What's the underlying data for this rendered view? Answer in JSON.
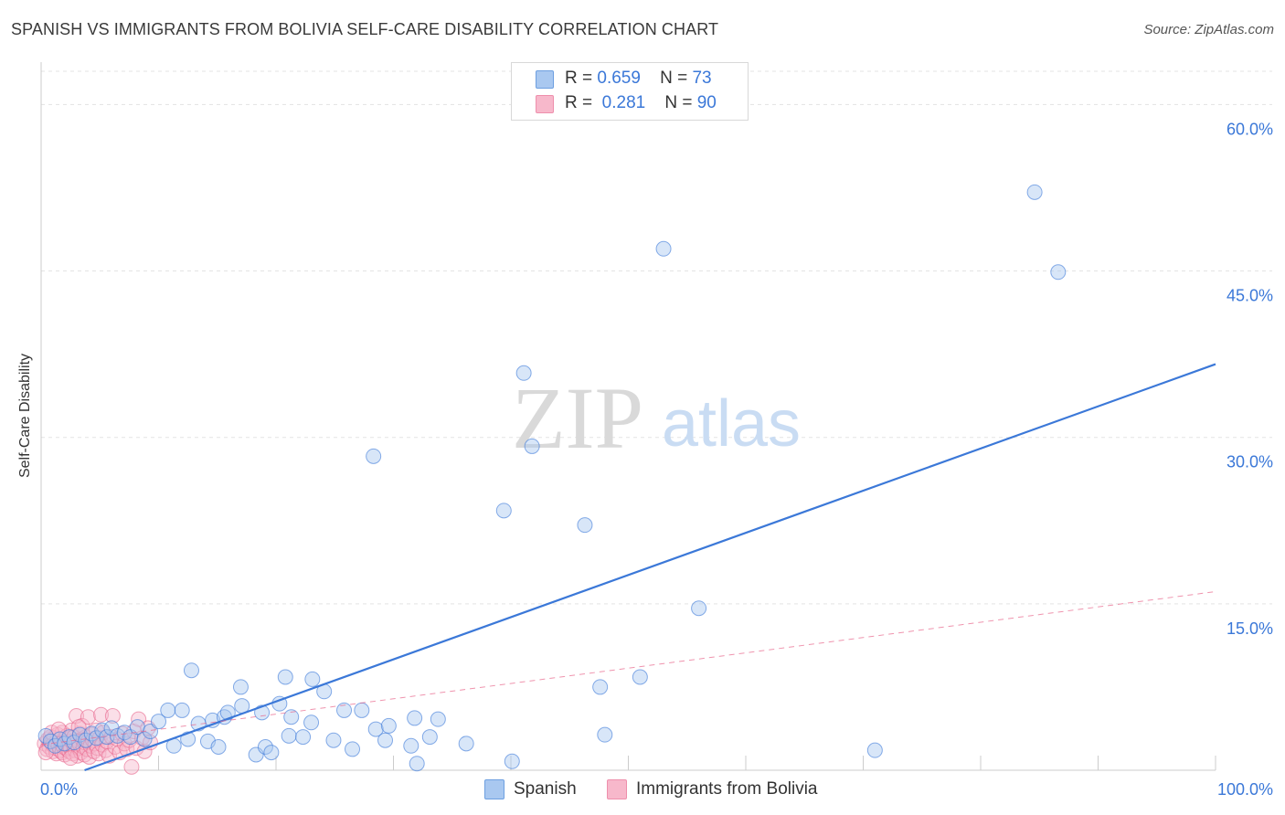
{
  "title": "SPANISH VS IMMIGRANTS FROM BOLIVIA SELF-CARE DISABILITY CORRELATION CHART",
  "source": "Source: ZipAtlas.com",
  "watermark": {
    "zip": "ZIP",
    "atlas": "atlas"
  },
  "legend": {
    "rows": [
      {
        "r_label": "R =",
        "r_value": "0.659",
        "n_label": "N =",
        "n_value": "73",
        "color": "#a9c8f0"
      },
      {
        "r_label": "R =",
        "r_value": "0.281",
        "n_label": "N =",
        "n_value": "90",
        "color": "#f7b8cb"
      }
    ]
  },
  "bottom_legend": [
    {
      "label": "Spanish",
      "color": "#a9c8f0"
    },
    {
      "label": "Immigrants from Bolivia",
      "color": "#f7b8cb"
    }
  ],
  "chart_data": {
    "type": "scatter",
    "ylabel": "Self-Care Disability",
    "xlim": [
      0,
      100
    ],
    "ylim": [
      0,
      63
    ],
    "x_tick_labels": [
      "0.0%",
      "100.0%"
    ],
    "y_ticks": [
      15,
      30,
      45,
      60
    ],
    "y_tick_labels": [
      "15.0%",
      "30.0%",
      "45.0%",
      "60.0%"
    ],
    "grid": true,
    "colors": {
      "spanish": "#3b78d8",
      "spanish_fill": "#a9c8f0",
      "bolivia": "#e8668c",
      "bolivia_fill": "#f7b8cb",
      "tick_label": "#3b78d8"
    },
    "series": [
      {
        "name": "Spanish",
        "trend": {
          "x0": 3.7,
          "y0": 0,
          "x1": 100,
          "y1": 36.6,
          "style": "solid"
        },
        "points": [
          [
            0.4,
            3.1
          ],
          [
            0.8,
            2.6
          ],
          [
            1.2,
            2.2
          ],
          [
            1.6,
            2.8
          ],
          [
            2.0,
            2.4
          ],
          [
            2.4,
            3.0
          ],
          [
            2.8,
            2.5
          ],
          [
            3.3,
            3.2
          ],
          [
            3.8,
            2.7
          ],
          [
            4.3,
            3.3
          ],
          [
            4.7,
            2.9
          ],
          [
            5.2,
            3.6
          ],
          [
            5.6,
            3.0
          ],
          [
            6.0,
            3.8
          ],
          [
            6.5,
            3.1
          ],
          [
            7.1,
            3.4
          ],
          [
            7.6,
            3.0
          ],
          [
            8.2,
            3.9
          ],
          [
            8.8,
            2.8
          ],
          [
            9.3,
            3.5
          ],
          [
            10.0,
            4.4
          ],
          [
            10.8,
            5.4
          ],
          [
            11.3,
            2.2
          ],
          [
            12.0,
            5.4
          ],
          [
            12.5,
            2.8
          ],
          [
            12.8,
            9.0
          ],
          [
            13.4,
            4.2
          ],
          [
            14.2,
            2.6
          ],
          [
            14.6,
            4.5
          ],
          [
            15.1,
            2.1
          ],
          [
            15.6,
            4.8
          ],
          [
            15.9,
            5.2
          ],
          [
            17.0,
            7.5
          ],
          [
            17.1,
            5.8
          ],
          [
            18.3,
            1.4
          ],
          [
            18.8,
            5.2
          ],
          [
            19.1,
            2.1
          ],
          [
            19.6,
            1.6
          ],
          [
            20.3,
            6.0
          ],
          [
            20.8,
            8.4
          ],
          [
            21.1,
            3.1
          ],
          [
            21.3,
            4.8
          ],
          [
            22.3,
            3.0
          ],
          [
            23.0,
            4.3
          ],
          [
            23.1,
            8.2
          ],
          [
            24.1,
            7.1
          ],
          [
            24.9,
            2.7
          ],
          [
            25.8,
            5.4
          ],
          [
            26.5,
            1.9
          ],
          [
            27.3,
            5.4
          ],
          [
            28.3,
            28.3
          ],
          [
            28.5,
            3.7
          ],
          [
            29.3,
            2.7
          ],
          [
            29.6,
            4.0
          ],
          [
            31.5,
            2.2
          ],
          [
            31.8,
            4.7
          ],
          [
            32.0,
            0.6
          ],
          [
            33.1,
            3.0
          ],
          [
            33.8,
            4.6
          ],
          [
            36.2,
            2.4
          ],
          [
            39.4,
            23.4
          ],
          [
            40.1,
            0.8
          ],
          [
            41.1,
            35.8
          ],
          [
            41.8,
            29.2
          ],
          [
            46.3,
            22.1
          ],
          [
            47.6,
            7.5
          ],
          [
            48.0,
            3.2
          ],
          [
            51.0,
            8.4
          ],
          [
            53.0,
            47.0
          ],
          [
            56.0,
            14.6
          ],
          [
            71.0,
            1.8
          ],
          [
            84.6,
            52.1
          ],
          [
            86.6,
            44.9
          ]
        ]
      },
      {
        "name": "Immigrants from Bolivia",
        "trend": {
          "x0": 0,
          "y0": 2.3,
          "x1": 100,
          "y1": 16.1,
          "style": "dashed"
        },
        "points": [
          [
            0.3,
            2.4
          ],
          [
            0.5,
            1.9
          ],
          [
            0.6,
            2.8
          ],
          [
            0.7,
            2.1
          ],
          [
            0.8,
            3.0
          ],
          [
            0.9,
            2.5
          ],
          [
            1.0,
            1.7
          ],
          [
            1.0,
            2.3
          ],
          [
            1.1,
            2.9
          ],
          [
            1.2,
            2.0
          ],
          [
            1.3,
            2.6
          ],
          [
            1.3,
            1.5
          ],
          [
            1.4,
            3.2
          ],
          [
            1.5,
            2.2
          ],
          [
            1.6,
            1.8
          ],
          [
            1.6,
            2.7
          ],
          [
            1.7,
            2.4
          ],
          [
            1.8,
            1.6
          ],
          [
            1.8,
            3.4
          ],
          [
            1.9,
            2.1
          ],
          [
            2.0,
            2.8
          ],
          [
            2.0,
            1.4
          ],
          [
            2.1,
            2.5
          ],
          [
            2.2,
            1.9
          ],
          [
            2.2,
            3.1
          ],
          [
            2.3,
            2.3
          ],
          [
            2.4,
            1.7
          ],
          [
            2.4,
            2.9
          ],
          [
            2.5,
            2.0
          ],
          [
            2.6,
            3.6
          ],
          [
            2.6,
            2.6
          ],
          [
            2.7,
            1.5
          ],
          [
            2.8,
            2.2
          ],
          [
            2.8,
            3.0
          ],
          [
            2.9,
            1.8
          ],
          [
            3.0,
            2.4
          ],
          [
            3.0,
            4.9
          ],
          [
            3.1,
            1.3
          ],
          [
            3.1,
            2.7
          ],
          [
            3.2,
            2.0
          ],
          [
            3.3,
            3.3
          ],
          [
            3.3,
            2.3
          ],
          [
            3.4,
            1.6
          ],
          [
            3.5,
            2.8
          ],
          [
            3.5,
            4.0
          ],
          [
            3.6,
            2.1
          ],
          [
            3.7,
            1.4
          ],
          [
            3.7,
            2.5
          ],
          [
            3.8,
            3.0
          ],
          [
            3.9,
            1.9
          ],
          [
            4.0,
            2.6
          ],
          [
            4.0,
            4.8
          ],
          [
            4.1,
            1.2
          ],
          [
            4.2,
            2.2
          ],
          [
            4.3,
            3.2
          ],
          [
            4.4,
            2.7
          ],
          [
            4.5,
            1.7
          ],
          [
            4.6,
            2.4
          ],
          [
            4.7,
            3.6
          ],
          [
            4.8,
            2.0
          ],
          [
            4.9,
            1.5
          ],
          [
            5.0,
            2.9
          ],
          [
            5.1,
            5.0
          ],
          [
            5.2,
            2.3
          ],
          [
            5.3,
            3.4
          ],
          [
            5.5,
            1.8
          ],
          [
            5.6,
            2.6
          ],
          [
            5.8,
            1.3
          ],
          [
            6.0,
            3.0
          ],
          [
            6.1,
            4.9
          ],
          [
            6.3,
            2.1
          ],
          [
            6.5,
            2.8
          ],
          [
            6.7,
            1.6
          ],
          [
            6.9,
            3.3
          ],
          [
            7.1,
            2.4
          ],
          [
            7.3,
            1.9
          ],
          [
            7.5,
            2.7
          ],
          [
            7.7,
            0.3
          ],
          [
            7.9,
            3.5
          ],
          [
            8.1,
            2.0
          ],
          [
            8.3,
            4.6
          ],
          [
            8.6,
            2.9
          ],
          [
            8.8,
            1.7
          ],
          [
            9.1,
            3.8
          ],
          [
            9.3,
            2.5
          ],
          [
            0.4,
            1.6
          ],
          [
            0.9,
            3.4
          ],
          [
            1.5,
            3.7
          ],
          [
            2.5,
            1.1
          ],
          [
            3.2,
            3.9
          ]
        ]
      }
    ]
  }
}
